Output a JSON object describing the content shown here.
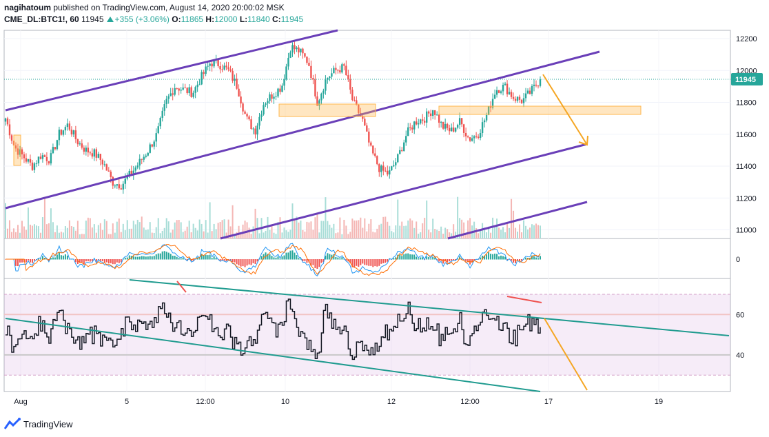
{
  "header": {
    "author": "nagihatoum",
    "published": "published on TradingView.com, August 14, 2020 20:00:02 MSK",
    "symbol": "CME_DL:BTC1!, 60",
    "price": "11945",
    "change": "+355 (+3.06%)",
    "o_label": "O:",
    "o": "11865",
    "h_label": "H:",
    "h": "12000",
    "l_label": "L:",
    "l": "11840",
    "c_label": "C:",
    "c": "11945"
  },
  "brand": "TradingView",
  "chart_data": {
    "type": "candlestick",
    "price_axis_ticks": [
      11000,
      11200,
      11400,
      11600,
      11800,
      12000,
      12200
    ],
    "last_price_label": "11945",
    "macd_axis_ticks": [
      0
    ],
    "rsi_axis_ticks": [
      40,
      60
    ],
    "rsi_band": [
      30,
      70
    ],
    "time_axis_labels": [
      "Aug",
      "5",
      "12:00",
      "10",
      "12",
      "12:00",
      "17",
      "19"
    ],
    "close_path": [
      11700,
      11520,
      11460,
      11400,
      11470,
      11440,
      11600,
      11660,
      11560,
      11500,
      11480,
      11420,
      11300,
      11280,
      11350,
      11420,
      11500,
      11600,
      11800,
      11900,
      11880,
      11860,
      11960,
      12050,
      12040,
      12000,
      11900,
      11700,
      11620,
      11800,
      11850,
      11900,
      12150,
      12120,
      12050,
      11800,
      11950,
      12000,
      12020,
      11800,
      11700,
      11500,
      11380,
      11350,
      11450,
      11600,
      11680,
      11700,
      11760,
      11650,
      11620,
      11680,
      11570,
      11600,
      11720,
      11880,
      11900,
      11830,
      11810,
      11870,
      11945
    ],
    "colors": {
      "up": "#26a69a",
      "down": "#ef5350",
      "channel": "#6a3fb8",
      "zone": "#ffb74d",
      "arrow": "#f5a623",
      "rsi_line": "#131722",
      "rsi_trend": "#1f9b8f",
      "macd": "#2196f3",
      "signal": "#ff6d00"
    }
  }
}
